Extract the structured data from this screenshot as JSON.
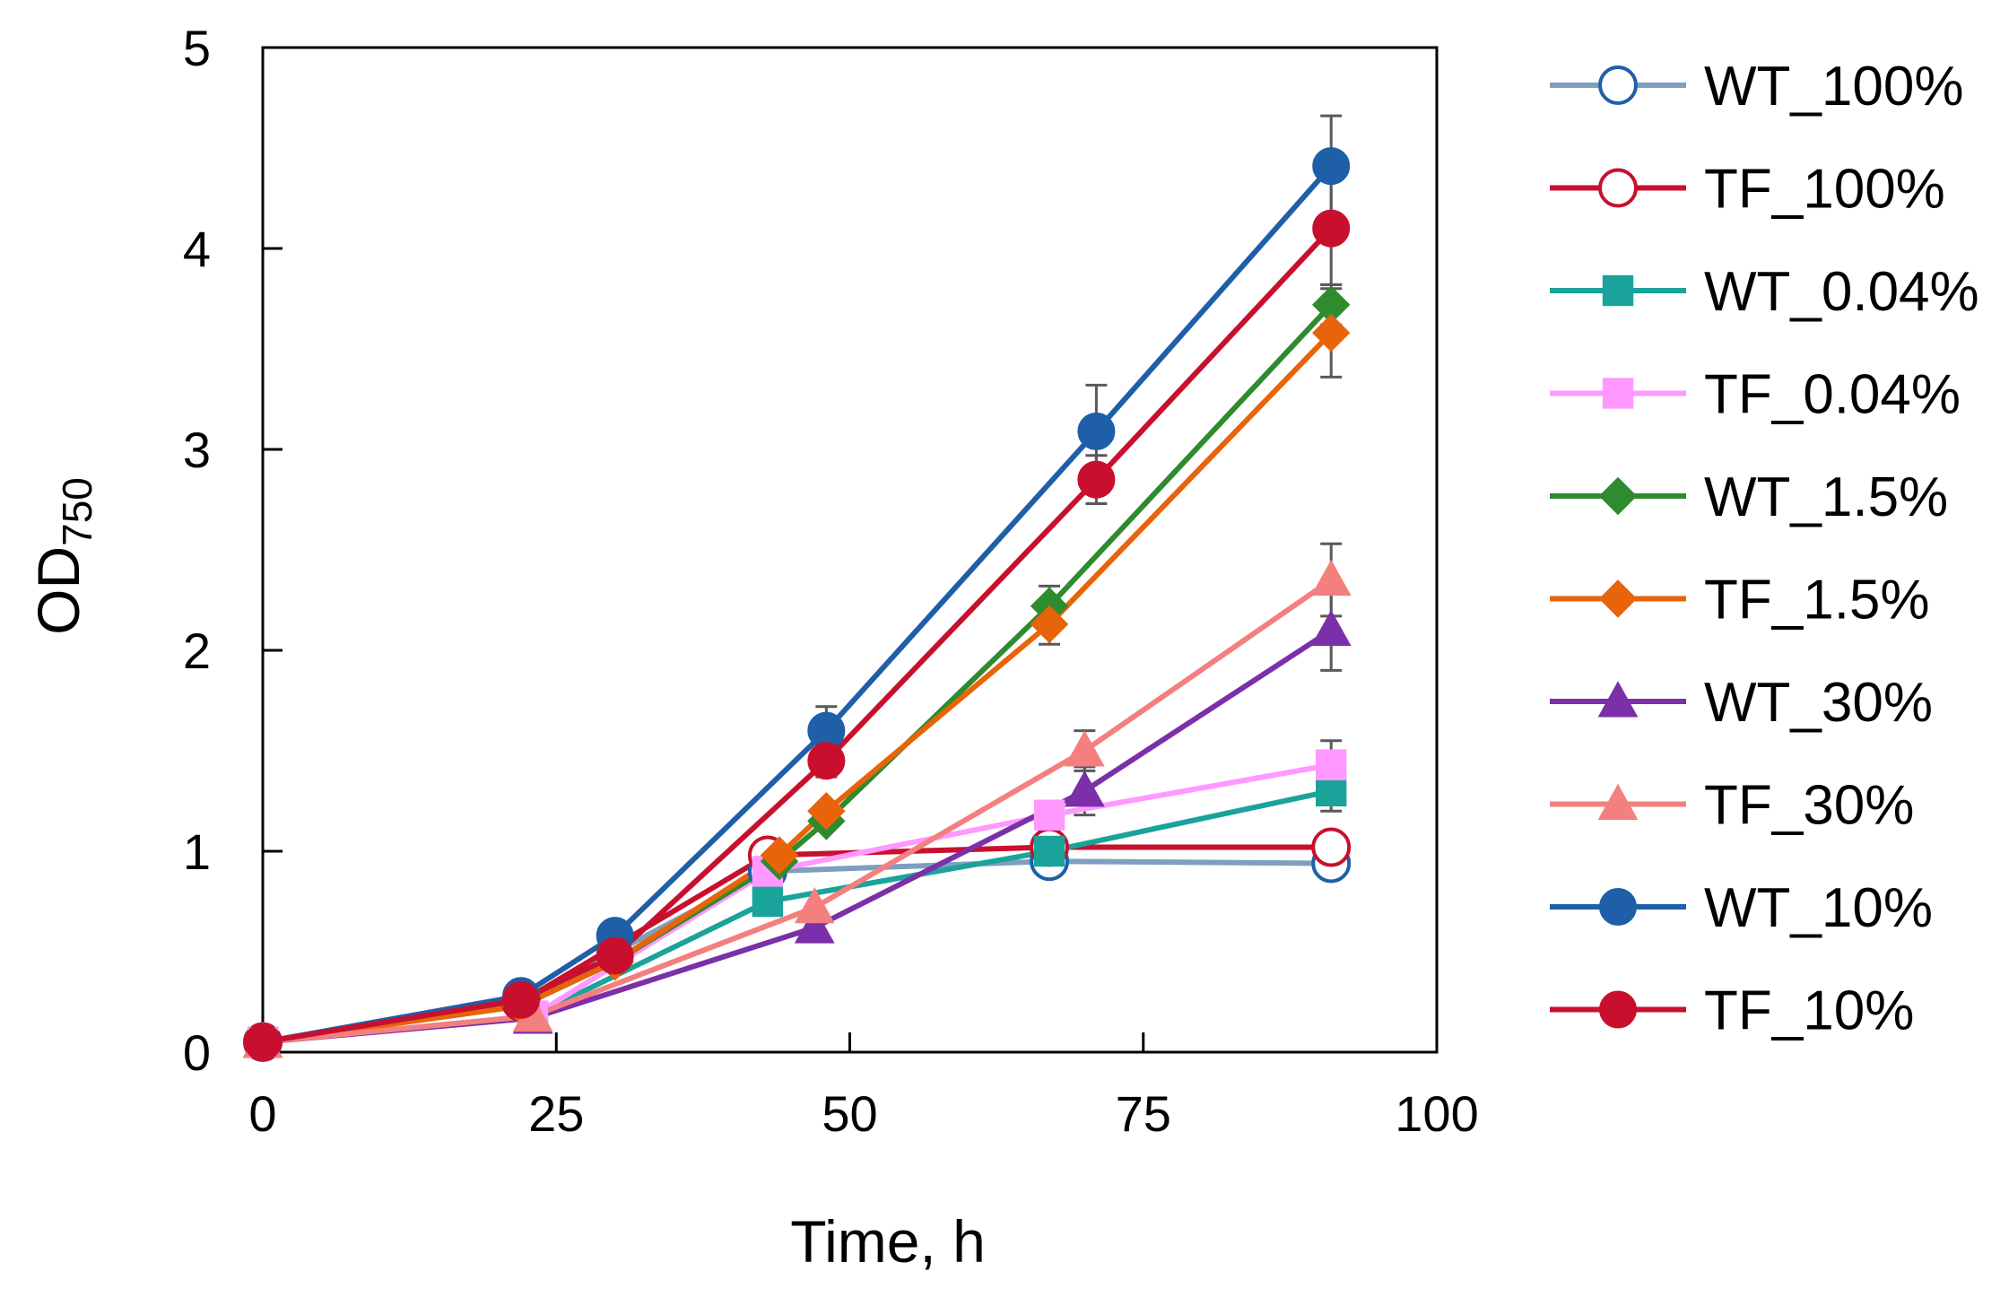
{
  "chart_data": {
    "type": "line",
    "xlabel": "Time, h",
    "ylabel": "OD",
    "ylabel_subscript": "750",
    "xlim": [
      0,
      100
    ],
    "ylim": [
      0,
      5
    ],
    "xticks": [
      0,
      25,
      50,
      75,
      100
    ],
    "yticks": [
      0,
      1,
      2,
      3,
      4,
      5
    ],
    "xtick_labels": [
      "0",
      "25",
      "50",
      "75",
      "100"
    ],
    "ytick_labels": [
      "0",
      "1",
      "2",
      "3",
      "4",
      "5"
    ],
    "grid": false,
    "legend_position": "right",
    "series": [
      {
        "name": "WT_100%",
        "color": "#7f9fbf",
        "marker": "circle",
        "filled": false,
        "marker_color": "#1f5fa8",
        "x": [
          0,
          22,
          43,
          67,
          91
        ],
        "y": [
          0.05,
          0.25,
          0.9,
          0.95,
          0.94
        ],
        "err": [
          0,
          0,
          0,
          0.03,
          0.03
        ]
      },
      {
        "name": "TF_100%",
        "color": "#c8102e",
        "marker": "circle",
        "filled": false,
        "marker_color": "#c8102e",
        "x": [
          0,
          22,
          43,
          67,
          91
        ],
        "y": [
          0.05,
          0.25,
          0.98,
          1.02,
          1.02
        ],
        "err": [
          0,
          0,
          0,
          0.03,
          0.03
        ]
      },
      {
        "name": "WT_0.04%",
        "color": "#1aa39a",
        "marker": "square",
        "filled": true,
        "marker_color": "#1aa39a",
        "x": [
          0,
          23,
          43,
          67,
          91
        ],
        "y": [
          0.05,
          0.18,
          0.75,
          1.0,
          1.3
        ],
        "err": [
          0,
          0,
          0,
          0.04,
          0.1
        ]
      },
      {
        "name": "TF_0.04%",
        "color": "#ff99ff",
        "marker": "square",
        "filled": true,
        "marker_color": "#ff99ff",
        "x": [
          0,
          23,
          43,
          67,
          91
        ],
        "y": [
          0.05,
          0.18,
          0.9,
          1.18,
          1.43
        ],
        "err": [
          0,
          0,
          0,
          0.05,
          0.12
        ]
      },
      {
        "name": "WT_1.5%",
        "color": "#2e8b2e",
        "marker": "diamond",
        "filled": true,
        "marker_color": "#2e8b2e",
        "x": [
          0,
          22,
          30,
          44,
          48,
          67,
          91
        ],
        "y": [
          0.05,
          0.23,
          0.45,
          0.95,
          1.15,
          2.22,
          3.72
        ],
        "err": [
          0,
          0,
          0,
          0,
          0,
          0.1,
          0.1
        ]
      },
      {
        "name": "TF_1.5%",
        "color": "#e8640a",
        "marker": "diamond",
        "filled": true,
        "marker_color": "#e8640a",
        "x": [
          0,
          22,
          30,
          44,
          48,
          67,
          91
        ],
        "y": [
          0.05,
          0.23,
          0.45,
          0.98,
          1.2,
          2.13,
          3.58
        ],
        "err": [
          0,
          0,
          0,
          0,
          0,
          0.1,
          0.22
        ]
      },
      {
        "name": "WT_30%",
        "color": "#7b2fa8",
        "marker": "triangle",
        "filled": true,
        "marker_color": "#7b2fa8",
        "x": [
          0,
          23,
          47,
          70,
          91
        ],
        "y": [
          0.05,
          0.17,
          0.62,
          1.3,
          2.1
        ],
        "err": [
          0,
          0,
          0,
          0.12,
          0.2
        ]
      },
      {
        "name": "TF_30%",
        "color": "#f47f7f",
        "marker": "triangle",
        "filled": true,
        "marker_color": "#f47f7f",
        "x": [
          0,
          23,
          47,
          70,
          91
        ],
        "y": [
          0.05,
          0.18,
          0.72,
          1.5,
          2.35
        ],
        "err": [
          0,
          0,
          0,
          0.1,
          0.18
        ]
      },
      {
        "name": "WT_10%",
        "color": "#1f5fa8",
        "marker": "circle",
        "filled": true,
        "marker_color": "#1f5fa8",
        "x": [
          0,
          22,
          30,
          48,
          71,
          91
        ],
        "y": [
          0.05,
          0.28,
          0.58,
          1.6,
          3.09,
          4.41
        ],
        "err": [
          0,
          0,
          0,
          0.12,
          0.23,
          0.25
        ]
      },
      {
        "name": "TF_10%",
        "color": "#c8102e",
        "marker": "circle",
        "filled": true,
        "marker_color": "#c8102e",
        "x": [
          0,
          22,
          30,
          48,
          71,
          91
        ],
        "y": [
          0.05,
          0.26,
          0.48,
          1.45,
          2.85,
          4.1
        ],
        "err": [
          0,
          0,
          0,
          0.08,
          0.12,
          0.28
        ]
      }
    ]
  }
}
